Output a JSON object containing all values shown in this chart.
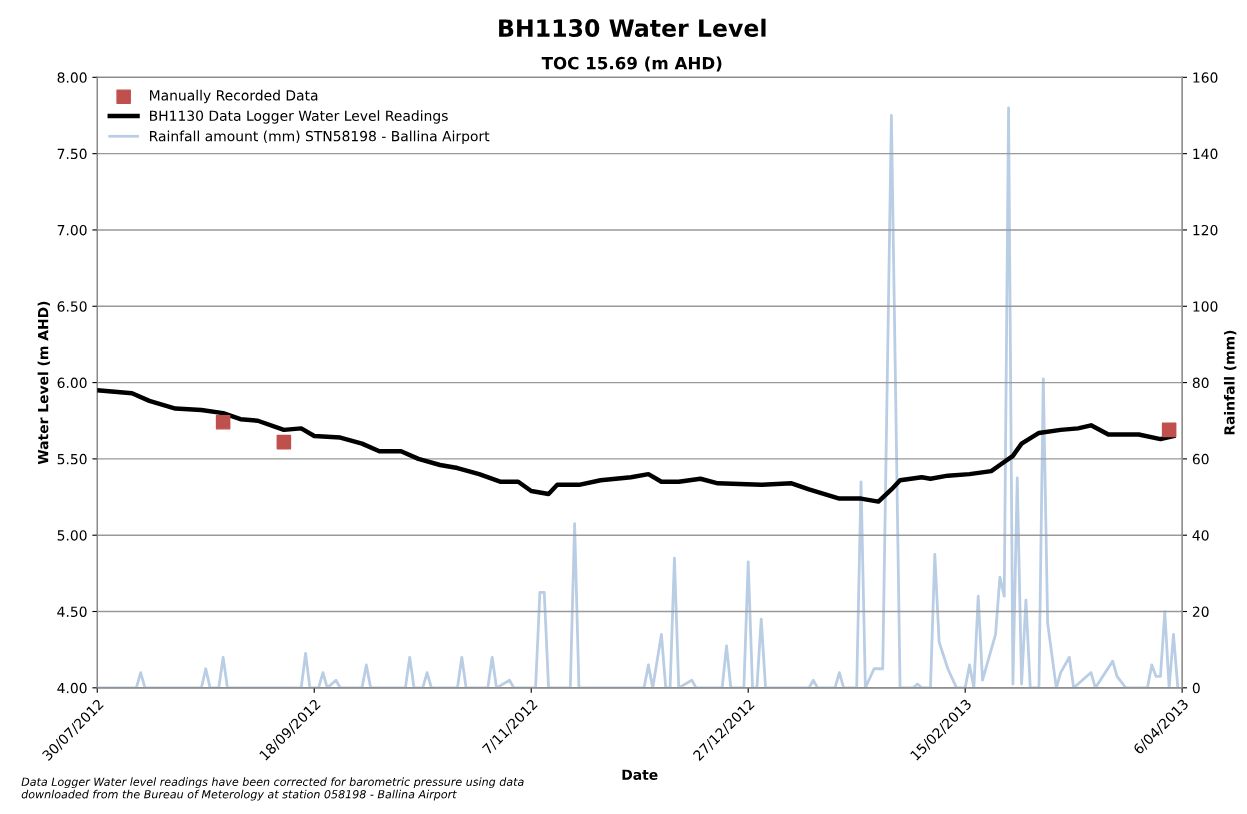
{
  "chart_data": {
    "type": "line",
    "title": "BH1130 Water Level",
    "subtitle": "TOC 15.69 (m AHD)",
    "xlabel": "Date",
    "ylabel": "Water Level (m AHD)",
    "y2label": "Rainfall (mm)",
    "annotations": [
      "Data Logger Water level readings have been corrected for barometric pressure using data downloaded from the Bureau of Meterology at station 058198 - Ballina Airport"
    ],
    "xlim": [
      "2012-07-30",
      "2013-04-06"
    ],
    "xticks": [
      {
        "value": "2012-07-30",
        "label": "30/07/2012"
      },
      {
        "value": "2012-09-18",
        "label": "18/09/2012"
      },
      {
        "value": "2012-11-07",
        "label": "7/11/2012"
      },
      {
        "value": "2012-12-27",
        "label": "27/12/2012"
      },
      {
        "value": "2013-02-15",
        "label": "15/02/2013"
      },
      {
        "value": "2013-04-06",
        "label": "6/04/2013"
      }
    ],
    "ylim": [
      4,
      8
    ],
    "yticks": [
      {
        "value": 4,
        "label": "4.00"
      },
      {
        "value": 4.5,
        "label": "4.50"
      },
      {
        "value": 5,
        "label": "5.00"
      },
      {
        "value": 5.5,
        "label": "5.50"
      },
      {
        "value": 6,
        "label": "6.00"
      },
      {
        "value": 6.5,
        "label": "6.50"
      },
      {
        "value": 7,
        "label": "7.00"
      },
      {
        "value": 7.5,
        "label": "7.50"
      },
      {
        "value": 8,
        "label": "8.00"
      }
    ],
    "y2lim": [
      0,
      160
    ],
    "y2ticks": [
      0,
      20,
      40,
      60,
      80,
      100,
      120,
      140,
      160
    ],
    "grid": "y",
    "legend": "top left",
    "series": [
      {
        "name": "Manually Recorded Data",
        "type": "scatter",
        "marker": "square",
        "color": "#c0504d",
        "x": [
          "2012-08-28",
          "2012-09-11",
          "2013-04-03"
        ],
        "values": [
          5.74,
          5.61,
          5.69
        ]
      },
      {
        "name": "BH1130 Data Logger Water Level Readings",
        "color": "#000000",
        "x": [
          "2012-07-30",
          "2012-08-07",
          "2012-08-11",
          "2012-08-17",
          "2012-08-23",
          "2012-08-28",
          "2012-09-01",
          "2012-09-05",
          "2012-09-11",
          "2012-09-15",
          "2012-09-18",
          "2012-09-24",
          "2012-09-29",
          "2012-10-03",
          "2012-10-08",
          "2012-10-12",
          "2012-10-17",
          "2012-10-21",
          "2012-10-26",
          "2012-10-31",
          "2012-11-04",
          "2012-11-07",
          "2012-11-11",
          "2012-11-13",
          "2012-11-18",
          "2012-11-23",
          "2012-11-30",
          "2012-12-04",
          "2012-12-07",
          "2012-12-11",
          "2012-12-16",
          "2012-12-20",
          "2012-12-30",
          "2013-01-06",
          "2013-01-10",
          "2013-01-17",
          "2013-01-22",
          "2013-01-26",
          "2013-01-29",
          "2013-01-31",
          "2013-02-05",
          "2013-02-07",
          "2013-02-11",
          "2013-02-16",
          "2013-02-21",
          "2013-02-23",
          "2013-02-26",
          "2013-02-28",
          "2013-03-04",
          "2013-03-09",
          "2013-03-13",
          "2013-03-16",
          "2013-03-20",
          "2013-03-22",
          "2013-03-27",
          "2013-04-01",
          "2013-04-04"
        ],
        "values": [
          5.95,
          5.93,
          5.88,
          5.83,
          5.82,
          5.8,
          5.76,
          5.75,
          5.69,
          5.7,
          5.65,
          5.64,
          5.6,
          5.55,
          5.55,
          5.5,
          5.46,
          5.44,
          5.4,
          5.35,
          5.35,
          5.29,
          5.27,
          5.33,
          5.33,
          5.36,
          5.38,
          5.4,
          5.35,
          5.35,
          5.37,
          5.34,
          5.33,
          5.34,
          5.3,
          5.24,
          5.24,
          5.22,
          5.3,
          5.36,
          5.38,
          5.37,
          5.39,
          5.4,
          5.42,
          5.46,
          5.52,
          5.6,
          5.67,
          5.69,
          5.7,
          5.72,
          5.66,
          5.66,
          5.66,
          5.63,
          5.65
        ]
      },
      {
        "name": "Rainfall amount (mm) STN58198 - Ballina Airport",
        "axis": "y2",
        "color": "#b9cde5",
        "x": [
          "2012-07-30",
          "2012-08-08",
          "2012-08-09",
          "2012-08-10",
          "2012-08-23",
          "2012-08-24",
          "2012-08-25",
          "2012-08-27",
          "2012-08-28",
          "2012-08-29",
          "2012-09-15",
          "2012-09-16",
          "2012-09-17",
          "2012-09-19",
          "2012-09-20",
          "2012-09-21",
          "2012-09-23",
          "2012-09-24",
          "2012-09-29",
          "2012-09-30",
          "2012-10-01",
          "2012-10-09",
          "2012-10-10",
          "2012-10-11",
          "2012-10-13",
          "2012-10-14",
          "2012-10-15",
          "2012-10-21",
          "2012-10-22",
          "2012-10-23",
          "2012-10-28",
          "2012-10-29",
          "2012-10-30",
          "2012-11-02",
          "2012-11-03",
          "2012-11-08",
          "2012-11-09",
          "2012-11-10",
          "2012-11-11",
          "2012-11-16",
          "2012-11-17",
          "2012-11-18",
          "2012-12-03",
          "2012-12-04",
          "2012-12-05",
          "2012-12-07",
          "2012-12-08",
          "2012-12-09",
          "2012-12-10",
          "2012-12-11",
          "2012-12-14",
          "2012-12-15",
          "2012-12-21",
          "2012-12-22",
          "2012-12-23",
          "2012-12-26",
          "2012-12-27",
          "2012-12-28",
          "2012-12-29",
          "2012-12-30",
          "2012-12-31",
          "2013-01-10",
          "2013-01-11",
          "2013-01-12",
          "2013-01-16",
          "2013-01-17",
          "2013-01-18",
          "2013-01-21",
          "2013-01-22",
          "2013-01-23",
          "2013-01-25",
          "2013-01-27",
          "2013-01-29",
          "2013-01-31",
          "2013-02-03",
          "2013-02-04",
          "2013-02-05",
          "2013-02-07",
          "2013-02-08",
          "2013-02-09",
          "2013-02-11",
          "2013-02-13",
          "2013-02-15",
          "2013-02-16",
          "2013-02-17",
          "2013-02-18",
          "2013-02-19",
          "2013-02-21",
          "2013-02-22",
          "2013-02-23",
          "2013-02-24",
          "2013-02-25",
          "2013-02-26",
          "2013-02-27",
          "2013-02-28",
          "2013-03-01",
          "2013-03-02",
          "2013-03-04",
          "2013-03-05",
          "2013-03-06",
          "2013-03-08",
          "2013-03-09",
          "2013-03-11",
          "2013-03-12",
          "2013-03-16",
          "2013-03-17",
          "2013-03-21",
          "2013-03-22",
          "2013-03-24",
          "2013-03-29",
          "2013-03-30",
          "2013-03-31",
          "2013-04-01",
          "2013-04-02",
          "2013-04-03",
          "2013-04-04",
          "2013-04-05"
        ],
        "values": [
          0,
          0,
          4,
          0,
          0,
          5,
          0,
          0,
          8,
          0,
          0,
          9,
          0,
          0,
          4,
          0,
          2,
          0,
          0,
          6,
          0,
          0,
          8,
          0,
          0,
          4,
          0,
          0,
          8,
          0,
          0,
          8,
          0,
          2,
          0,
          0,
          25,
          25,
          0,
          0,
          43,
          0,
          0,
          6,
          0,
          14,
          0,
          0,
          34,
          0,
          2,
          0,
          0,
          11,
          0,
          0,
          33,
          0,
          0,
          18,
          0,
          0,
          2,
          0,
          0,
          4,
          0,
          0,
          54,
          0,
          5,
          5,
          150,
          0,
          0,
          1,
          0,
          0,
          35,
          12,
          5,
          0,
          0,
          6,
          0,
          24,
          2,
          10,
          14,
          29,
          24,
          152,
          1,
          55,
          1,
          23,
          0,
          0,
          81,
          17,
          0,
          4,
          8,
          0,
          4,
          0,
          7,
          3,
          0,
          0,
          6,
          3,
          3,
          20,
          0,
          14,
          0
        ]
      }
    ]
  }
}
